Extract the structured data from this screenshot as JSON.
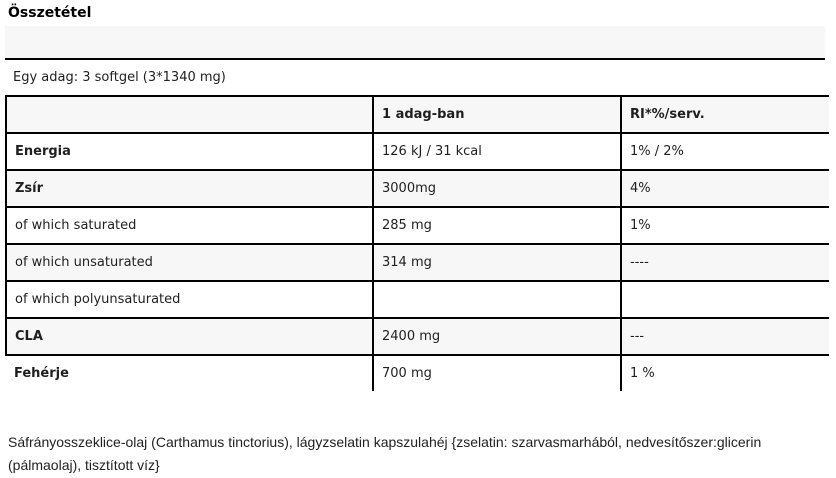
{
  "page": {
    "title": "Összetétel",
    "serving_line": "Egy adag: 3 softgel (3*1340 mg)",
    "footer": "Sáfrányosszeklice-olaj (Carthamus tinctorius), lágyzselatin kapszulahéj {zselatin: szarvasmarhából, nedvesítőszer:glicerin (pálmaolaj), tisztított víz}"
  },
  "colors": {
    "row_alt_bg": "#f7f7f7",
    "border": "#000000",
    "text": "#1f1f1f"
  },
  "table": {
    "header": {
      "label": "",
      "amount": "1 adag-ban",
      "ri": "RI*%/serv."
    },
    "rows": [
      {
        "label": "Energia",
        "value": "126 kJ / 31 kcal",
        "ri": "1% / 2%"
      },
      {
        "label": "Zsír",
        "value": "3000mg",
        "ri": "4%"
      },
      {
        "label": "of which saturated",
        "value": "285 mg",
        "ri": "1%"
      },
      {
        "label": "of which unsaturated",
        "value": "314 mg",
        "ri": "----"
      },
      {
        "label": "of which polyunsaturated",
        "value": "",
        "ri": ""
      },
      {
        "label": "CLA",
        "value": "2400 mg",
        "ri": "---"
      },
      {
        "label": "Fehérje",
        "value": "700 mg",
        "ri": "1 %"
      }
    ]
  }
}
